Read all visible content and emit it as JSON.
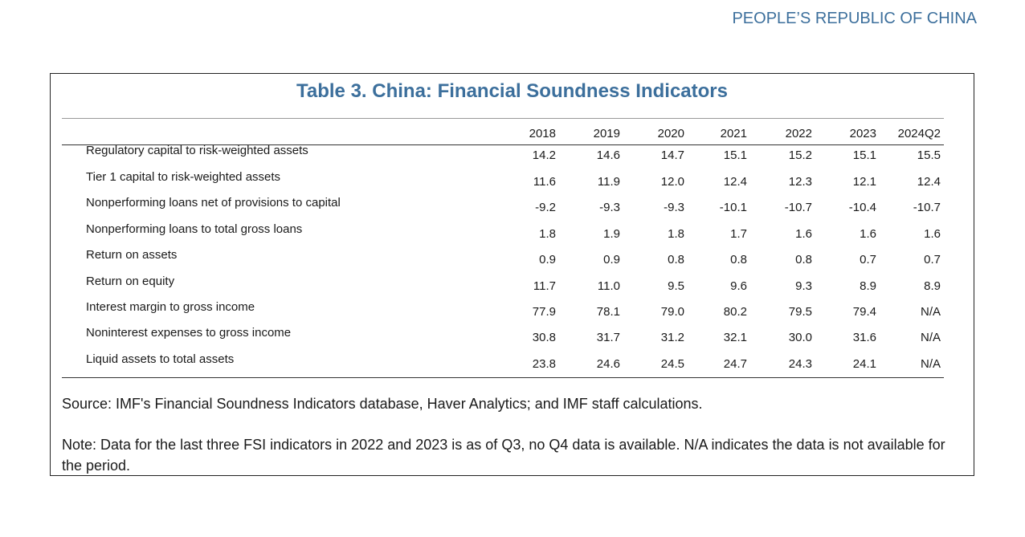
{
  "header": {
    "running_title": "PEOPLE’S REPUBLIC OF CHINA"
  },
  "table": {
    "title": "Table 3. China: Financial Soundness Indicators",
    "columns": [
      "2018",
      "2019",
      "2020",
      "2021",
      "2022",
      "2023",
      "2024Q2"
    ],
    "rows": [
      {
        "label": "Regulatory capital to risk-weighted assets",
        "values": [
          "14.2",
          "14.6",
          "14.7",
          "15.1",
          "15.2",
          "15.1",
          "15.5"
        ]
      },
      {
        "label": "Tier 1 capital to risk-weighted assets",
        "values": [
          "11.6",
          "11.9",
          "12.0",
          "12.4",
          "12.3",
          "12.1",
          "12.4"
        ]
      },
      {
        "label": "Nonperforming loans net of provisions to capital",
        "values": [
          "-9.2",
          "-9.3",
          "-9.3",
          "-10.1",
          "-10.7",
          "-10.4",
          "-10.7"
        ]
      },
      {
        "label": "Nonperforming loans to total gross loans",
        "values": [
          "1.8",
          "1.9",
          "1.8",
          "1.7",
          "1.6",
          "1.6",
          "1.6"
        ]
      },
      {
        "label": "Return on assets",
        "values": [
          "0.9",
          "0.9",
          "0.8",
          "0.8",
          "0.8",
          "0.7",
          "0.7"
        ]
      },
      {
        "label": "Return on equity",
        "values": [
          "11.7",
          "11.0",
          "9.5",
          "9.6",
          "9.3",
          "8.9",
          "8.9"
        ]
      },
      {
        "label": "Interest margin to gross income",
        "values": [
          "77.9",
          "78.1",
          "79.0",
          "80.2",
          "79.5",
          "79.4",
          "N/A"
        ]
      },
      {
        "label": "Noninterest expenses to gross income",
        "values": [
          "30.8",
          "31.7",
          "31.2",
          "32.1",
          "30.0",
          "31.6",
          "N/A"
        ]
      },
      {
        "label": "Liquid assets to total assets",
        "values": [
          "23.8",
          "24.6",
          "24.5",
          "24.7",
          "24.3",
          "24.1",
          "N/A"
        ]
      }
    ],
    "source": "Source: IMF's Financial Soundness Indicators database, Haver Analytics; and IMF staff calculations.",
    "note": "Note: Data for the last three FSI indicators in 2022 and 2023 is as of Q3, no Q4 data is available. N/A indicates the data is not available for the period."
  }
}
